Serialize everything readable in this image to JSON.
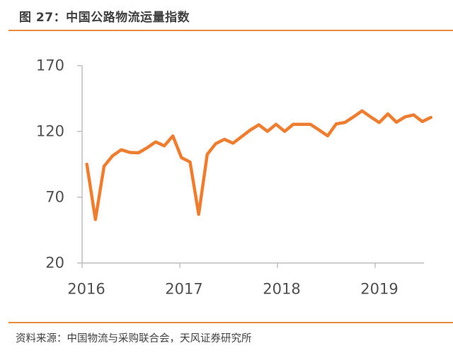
{
  "header": {
    "title": "图 27：中国公路物流运量指数",
    "accent_color": "#E8893C"
  },
  "footer": {
    "source": "资料来源：中国物流与采购联合会，天风证券研究所"
  },
  "chart_data": {
    "type": "line",
    "title": "图 27：中国公路物流运量指数",
    "xlabel": "",
    "ylabel": "",
    "ylim": [
      20,
      170
    ],
    "yticks": [
      20,
      70,
      120,
      170
    ],
    "xticks": [
      "2016",
      "2017",
      "2018",
      "2019"
    ],
    "grid": false,
    "legend": null,
    "line_color": "#ED7D31",
    "x": [
      "2016-01",
      "2016-02",
      "2016-03",
      "2016-04",
      "2016-05",
      "2016-06",
      "2016-07",
      "2016-08",
      "2016-09",
      "2016-10",
      "2016-11",
      "2016-12",
      "2017-01",
      "2017-02",
      "2017-03",
      "2017-04",
      "2017-05",
      "2017-06",
      "2017-07",
      "2017-08",
      "2017-09",
      "2017-10",
      "2017-11",
      "2017-12",
      "2018-01",
      "2018-02",
      "2018-03",
      "2018-04",
      "2018-05",
      "2018-06",
      "2018-07",
      "2018-08",
      "2018-09",
      "2018-10",
      "2018-11",
      "2018-12",
      "2019-01",
      "2019-02",
      "2019-03",
      "2019-04",
      "2019-05"
    ],
    "series": [
      {
        "name": "中国公路物流运量指数",
        "values": [
          95,
          53,
          93.5,
          101.5,
          106,
          104,
          103.7,
          107.5,
          112,
          109,
          116.5,
          100,
          96.7,
          57,
          102.6,
          110.7,
          114,
          111,
          116,
          121,
          125,
          120,
          125.4,
          120,
          125.4,
          125.4,
          125.4,
          121,
          116.6,
          125.7,
          126.8,
          131,
          135.6,
          131,
          126.7,
          133.3,
          127,
          131,
          132.5,
          127.5,
          130.6
        ]
      }
    ],
    "source": "资料来源：中国物流与采购联合会，天风证券研究所"
  }
}
